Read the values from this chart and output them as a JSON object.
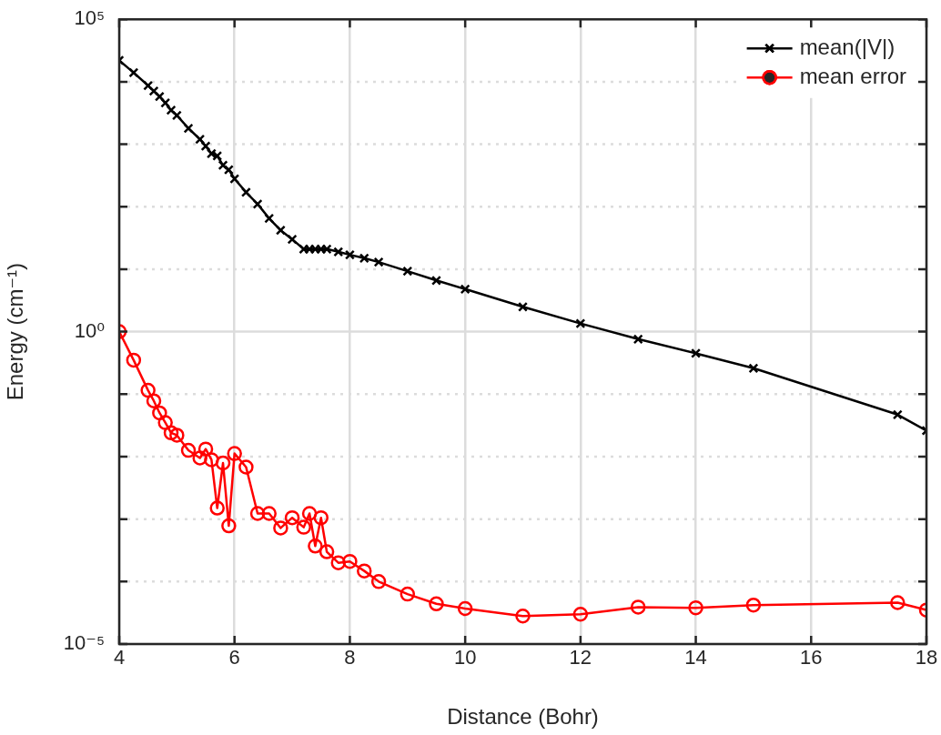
{
  "chart_data": {
    "type": "line",
    "xlabel": "Distance (Bohr)",
    "ylabel": "Energy (cm⁻¹)",
    "x": [
      4,
      4.25,
      4.5,
      4.6,
      4.7,
      4.8,
      4.9,
      5,
      5.2,
      5.4,
      5.5,
      5.6,
      5.7,
      5.8,
      5.9,
      6,
      6.2,
      6.4,
      6.6,
      6.8,
      7,
      7.2,
      7.3,
      7.4,
      7.5,
      7.6,
      7.8,
      8,
      8.25,
      8.5,
      9,
      9.5,
      10,
      11,
      12,
      13,
      14,
      15,
      17.5,
      18
    ],
    "series": [
      {
        "name": "mean(|V|)",
        "color": "#000000",
        "marker": "cross",
        "values": [
          22000,
          14000,
          8700,
          7100,
          5800,
          4600,
          3500,
          2900,
          1800,
          1200,
          930,
          710,
          650,
          460,
          390,
          280,
          170,
          110,
          65,
          42,
          30,
          21,
          21,
          21,
          21,
          21,
          19,
          17,
          15,
          13,
          9.3,
          6.6,
          4.8,
          2.5,
          1.35,
          0.76,
          0.45,
          0.26,
          0.047,
          0.026
        ]
      },
      {
        "name": "mean error",
        "color": "#ff0000",
        "marker": "circle",
        "values": [
          1.0,
          0.35,
          0.115,
          0.078,
          0.05,
          0.035,
          0.024,
          0.022,
          0.0126,
          0.0095,
          0.0132,
          0.0089,
          0.0015,
          0.0079,
          0.00078,
          0.0112,
          0.0068,
          0.00123,
          0.00123,
          0.00072,
          0.00105,
          0.00074,
          0.00123,
          0.00037,
          0.00105,
          0.0003,
          0.0002,
          0.00021,
          0.000148,
          0.0001,
          6.3e-05,
          4.4e-05,
          3.7e-05,
          2.8e-05,
          3e-05,
          3.9e-05,
          3.8e-05,
          4.2e-05,
          4.6e-05,
          3.5e-05
        ]
      }
    ],
    "xlim": [
      4,
      18
    ],
    "xticks": [
      4,
      6,
      8,
      10,
      12,
      14,
      16,
      18
    ],
    "ylim": [
      1e-05,
      100000
    ],
    "yticks": [
      {
        "value": 1e-05,
        "label": "10⁻⁵"
      },
      {
        "value": 0.0001,
        "label": null
      },
      {
        "value": 0.001,
        "label": null
      },
      {
        "value": 0.01,
        "label": null
      },
      {
        "value": 0.1,
        "label": null
      },
      {
        "value": 1,
        "label": "10⁰"
      },
      {
        "value": 10,
        "label": null
      },
      {
        "value": 100,
        "label": null
      },
      {
        "value": 1000,
        "label": null
      },
      {
        "value": 10000,
        "label": null
      },
      {
        "value": 100000,
        "label": "10⁵"
      }
    ],
    "log": "y",
    "grid": true,
    "legend": "top right",
    "line_style": "solid"
  }
}
